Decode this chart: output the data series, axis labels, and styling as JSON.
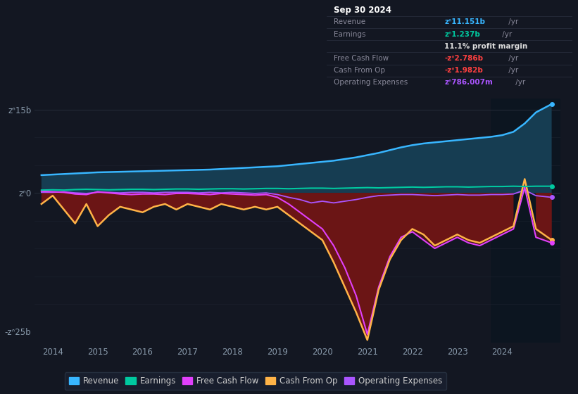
{
  "bg_color": "#131722",
  "plot_bg_color": "#131722",
  "info_box_bg": "#0d1117",
  "info_box_border": "#2a3040",
  "ytick_labels": [
    "zᐢ15b",
    "zᐢ0",
    "-zᐢ25b"
  ],
  "ytick_vals": [
    15,
    0,
    -25
  ],
  "xtick_years": [
    2014,
    2015,
    2016,
    2017,
    2018,
    2019,
    2020,
    2021,
    2022,
    2023,
    2024
  ],
  "xlim": [
    2013.6,
    2025.3
  ],
  "ylim": [
    -27,
    17
  ],
  "shade_start": 2023.75,
  "lines": {
    "revenue": {
      "color": "#38b6ff",
      "lw": 1.8,
      "label": "Revenue"
    },
    "earnings": {
      "color": "#00c9a0",
      "lw": 1.5,
      "label": "Earnings"
    },
    "free_cash_flow": {
      "color": "#e040fb",
      "lw": 1.5,
      "label": "Free Cash Flow"
    },
    "cash_from_op": {
      "color": "#ffb347",
      "lw": 1.8,
      "label": "Cash From Op"
    },
    "op_expenses": {
      "color": "#aa55ff",
      "lw": 1.3,
      "label": "Operating Expenses"
    }
  },
  "fill_above_color": "#163d52",
  "fill_below_color": "#6b1515",
  "shade_panel_color": "#0c1520",
  "grid_lines": [
    -20,
    -15,
    -10,
    -5,
    0,
    5,
    10,
    15
  ],
  "x": [
    2013.75,
    2014.0,
    2014.25,
    2014.5,
    2014.75,
    2015.0,
    2015.25,
    2015.5,
    2015.75,
    2016.0,
    2016.25,
    2016.5,
    2016.75,
    2017.0,
    2017.25,
    2017.5,
    2017.75,
    2018.0,
    2018.25,
    2018.5,
    2018.75,
    2019.0,
    2019.25,
    2019.5,
    2019.75,
    2020.0,
    2020.25,
    2020.5,
    2020.75,
    2021.0,
    2021.25,
    2021.5,
    2021.75,
    2022.0,
    2022.25,
    2022.5,
    2022.75,
    2023.0,
    2023.25,
    2023.5,
    2023.75,
    2024.0,
    2024.25,
    2024.5,
    2024.75,
    2025.1
  ],
  "revenue": [
    3.2,
    3.3,
    3.4,
    3.5,
    3.6,
    3.7,
    3.75,
    3.8,
    3.85,
    3.9,
    3.95,
    4.0,
    4.05,
    4.1,
    4.15,
    4.2,
    4.3,
    4.4,
    4.5,
    4.6,
    4.7,
    4.8,
    5.0,
    5.2,
    5.4,
    5.6,
    5.8,
    6.1,
    6.4,
    6.8,
    7.2,
    7.7,
    8.2,
    8.6,
    8.9,
    9.1,
    9.3,
    9.5,
    9.7,
    9.9,
    10.1,
    10.4,
    11.0,
    12.5,
    14.5,
    16.0
  ],
  "earnings": [
    0.5,
    0.55,
    0.5,
    0.6,
    0.65,
    0.6,
    0.55,
    0.6,
    0.65,
    0.65,
    0.6,
    0.65,
    0.7,
    0.7,
    0.65,
    0.7,
    0.75,
    0.75,
    0.7,
    0.75,
    0.8,
    0.8,
    0.75,
    0.8,
    0.85,
    0.85,
    0.8,
    0.85,
    0.9,
    0.95,
    0.9,
    0.95,
    1.0,
    1.05,
    1.0,
    1.05,
    1.1,
    1.1,
    1.05,
    1.1,
    1.15,
    1.15,
    1.2,
    1.15,
    1.2,
    1.2
  ],
  "free_cash_flow": [
    0.3,
    0.2,
    0.1,
    -0.2,
    -0.3,
    0.2,
    0.0,
    -0.2,
    -0.3,
    -0.2,
    -0.2,
    -0.3,
    -0.1,
    -0.1,
    -0.2,
    -0.3,
    -0.1,
    -0.2,
    -0.3,
    -0.4,
    -0.3,
    -0.8,
    -2.0,
    -3.5,
    -5.0,
    -6.5,
    -9.5,
    -13.5,
    -18.5,
    -25.5,
    -17.0,
    -11.5,
    -8.0,
    -7.0,
    -8.5,
    -10.0,
    -9.0,
    -8.0,
    -9.0,
    -9.5,
    -8.5,
    -7.5,
    -6.5,
    1.0,
    -8.0,
    -9.0
  ],
  "cash_from_op": [
    -2.0,
    -0.5,
    -3.0,
    -5.5,
    -2.0,
    -6.0,
    -4.0,
    -2.5,
    -3.0,
    -3.5,
    -2.5,
    -2.0,
    -3.0,
    -2.0,
    -2.5,
    -3.0,
    -2.0,
    -2.5,
    -3.0,
    -2.5,
    -3.0,
    -2.5,
    -4.0,
    -5.5,
    -7.0,
    -8.5,
    -12.5,
    -17.0,
    -21.5,
    -26.5,
    -17.5,
    -12.0,
    -8.5,
    -6.5,
    -7.5,
    -9.5,
    -8.5,
    -7.5,
    -8.5,
    -9.0,
    -8.0,
    -7.0,
    -6.0,
    2.5,
    -6.5,
    -8.5
  ],
  "op_expenses": [
    0.1,
    0.1,
    0.2,
    0.0,
    -0.1,
    0.1,
    0.1,
    0.0,
    0.1,
    0.1,
    0.0,
    0.1,
    0.1,
    0.1,
    0.0,
    0.1,
    0.0,
    0.1,
    0.0,
    -0.1,
    0.0,
    -0.3,
    -0.8,
    -1.2,
    -1.8,
    -1.5,
    -1.8,
    -1.5,
    -1.2,
    -0.8,
    -0.5,
    -0.4,
    -0.3,
    -0.3,
    -0.4,
    -0.5,
    -0.4,
    -0.3,
    -0.4,
    -0.4,
    -0.3,
    -0.3,
    -0.2,
    0.5,
    -0.5,
    -0.8
  ]
}
